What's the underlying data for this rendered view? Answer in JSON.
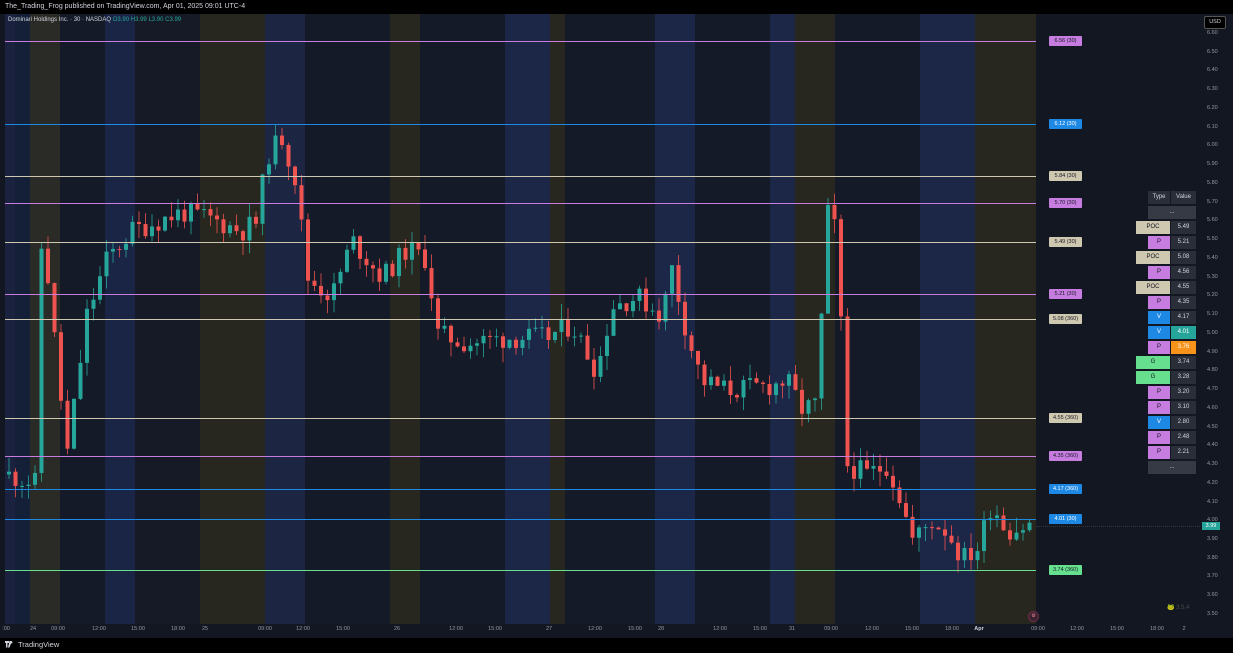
{
  "publisher": "The_Trading_Frog published on TradingView.com, Apr 01, 2025 09:01 UTC-4",
  "legend": {
    "symbol": "Dominari Holdings Inc. · 30 · NASDAQ",
    "open": "O3.90",
    "high": "H3.99",
    "low": "L3.90",
    "close": "C3.99"
  },
  "currency": "USD",
  "last_price": "3.99",
  "price_axis": [
    "6.60",
    "6.50",
    "6.40",
    "6.30",
    "6.20",
    "6.10",
    "6.00",
    "5.90",
    "5.80",
    "5.70",
    "5.60",
    "5.50",
    "5.40",
    "5.30",
    "5.20",
    "5.10",
    "5.00",
    "4.90",
    "4.80",
    "4.70",
    "4.60",
    "4.50",
    "4.40",
    "4.30",
    "4.20",
    "4.10",
    "4.00",
    "3.90",
    "3.80",
    "3.70",
    "3.60",
    "3.50"
  ],
  "time_axis": [
    {
      "label": ":00"
    },
    {
      "label": "24"
    },
    {
      "label": "09:00"
    },
    {
      "label": "12:00"
    },
    {
      "label": "15:00"
    },
    {
      "label": "18:00"
    },
    {
      "label": "25"
    },
    {
      "label": "09:00"
    },
    {
      "label": "12:00"
    },
    {
      "label": "15:00"
    },
    {
      "label": "26"
    },
    {
      "label": "12:00"
    },
    {
      "label": "15:00"
    },
    {
      "label": "27"
    },
    {
      "label": "12:00"
    },
    {
      "label": "15:00"
    },
    {
      "label": "28"
    },
    {
      "label": "12:00"
    },
    {
      "label": "15:00"
    },
    {
      "label": "31"
    },
    {
      "label": "09:00"
    },
    {
      "label": "12:00"
    },
    {
      "label": "15:00"
    },
    {
      "label": "18:00"
    },
    {
      "label": "Apr"
    },
    {
      "label": "09:00"
    },
    {
      "label": "12:00"
    },
    {
      "label": "15:00"
    },
    {
      "label": "18:00"
    },
    {
      "label": "2"
    }
  ],
  "levels": [
    {
      "label": "6.56 (30)",
      "price": 6.56,
      "type": "P"
    },
    {
      "label": "6.12 (30)",
      "price": 6.12,
      "type": "V"
    },
    {
      "label": "5.84 (30)",
      "price": 5.84,
      "type": "POC"
    },
    {
      "label": "5.70 (30)",
      "price": 5.7,
      "type": "P"
    },
    {
      "label": "5.49 (30)",
      "price": 5.49,
      "type": "POC"
    },
    {
      "label": "5.21 (30)",
      "price": 5.21,
      "type": "P"
    },
    {
      "label": "5.08 (360)",
      "price": 5.08,
      "type": "POC"
    },
    {
      "label": "4.55 (360)",
      "price": 4.55,
      "type": "POC"
    },
    {
      "label": "4.35 (360)",
      "price": 4.35,
      "type": "P"
    },
    {
      "label": "4.17 (360)",
      "price": 4.17,
      "type": "V"
    },
    {
      "label": "4.01 (30)",
      "price": 4.01,
      "type": "V"
    },
    {
      "label": "3.74 (360)",
      "price": 3.74,
      "type": "G"
    }
  ],
  "table": {
    "headers": [
      "Type",
      "Value"
    ],
    "top_ellipsis": "...",
    "bottom_ellipsis": "...",
    "rows": [
      {
        "type": "POC",
        "value": "5.49",
        "highlight": false
      },
      {
        "type": "P",
        "value": "5.21",
        "highlight": false
      },
      {
        "type": "POC",
        "value": "5.08",
        "highlight": false
      },
      {
        "type": "P",
        "value": "4.56",
        "highlight": false
      },
      {
        "type": "POC",
        "value": "4.55",
        "highlight": false
      },
      {
        "type": "P",
        "value": "4.35",
        "highlight": false
      },
      {
        "type": "V",
        "value": "4.17",
        "highlight": false
      },
      {
        "type": "V",
        "value": "4.01",
        "highlight": "#26a69a"
      },
      {
        "type": "P",
        "value": "3.76",
        "highlight": "#f7931a"
      },
      {
        "type": "G",
        "value": "3.74",
        "highlight": false
      },
      {
        "type": "G",
        "value": "3.28",
        "highlight": false
      },
      {
        "type": "P",
        "value": "3.20",
        "highlight": false
      },
      {
        "type": "P",
        "value": "3.10",
        "highlight": false
      },
      {
        "type": "V",
        "value": "2.80",
        "highlight": false
      },
      {
        "type": "P",
        "value": "2.48",
        "highlight": false
      },
      {
        "type": "P",
        "value": "2.21",
        "highlight": false
      }
    ]
  },
  "colors": {
    "up": "#26a69a",
    "down": "#ef5350",
    "P": "#c77ddf",
    "V": "#1e88e5",
    "POC": "#cfc8b0",
    "G": "#66e08f"
  },
  "watermark_label": "3.5.4",
  "footer": {
    "brand": "TradingView"
  }
}
